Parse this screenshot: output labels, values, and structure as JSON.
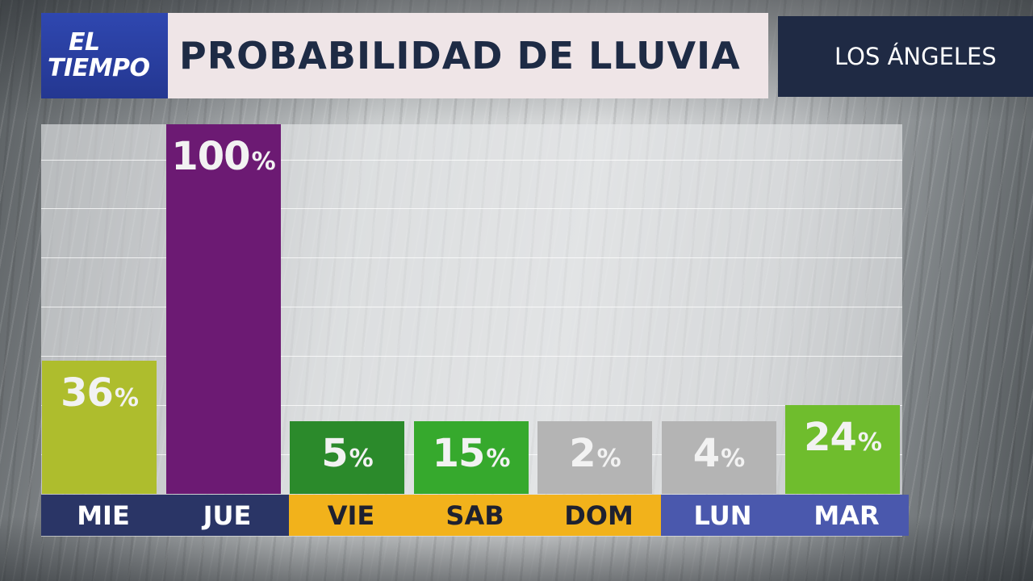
{
  "header": {
    "logo_line1": "EL",
    "logo_line2": "TIEMPO",
    "title": "PROBABILIDAD DE LLUVIA",
    "city": "LOS ÁNGELES"
  },
  "chart_data": {
    "type": "bar",
    "title": "PROBABILIDAD DE LLUVIA",
    "categories": [
      "MIE",
      "JUE",
      "VIE",
      "SAB",
      "DOM",
      "LUN",
      "MAR"
    ],
    "values": [
      36,
      100,
      5,
      15,
      2,
      4,
      24
    ],
    "value_labels": [
      "36",
      "100",
      "5",
      "15",
      "2",
      "4",
      "24"
    ],
    "unit": "%",
    "ylim": [
      0,
      100
    ],
    "grid": true,
    "bar_colors": [
      "#aebd2d",
      "#6c1a73",
      "#2b8a2b",
      "#36a92d",
      "#b4b4b4",
      "#b4b4b4",
      "#6fbd2d"
    ],
    "day_bg_colors": [
      "#2a3566",
      "#2a3566",
      "#f2b21b",
      "#f2b21b",
      "#f2b21b",
      "#4a58ad",
      "#4a58ad"
    ],
    "day_text_colors": [
      "#ffffff",
      "#ffffff",
      "#1e2130",
      "#1e2130",
      "#1e2130",
      "#ffffff",
      "#ffffff"
    ]
  }
}
